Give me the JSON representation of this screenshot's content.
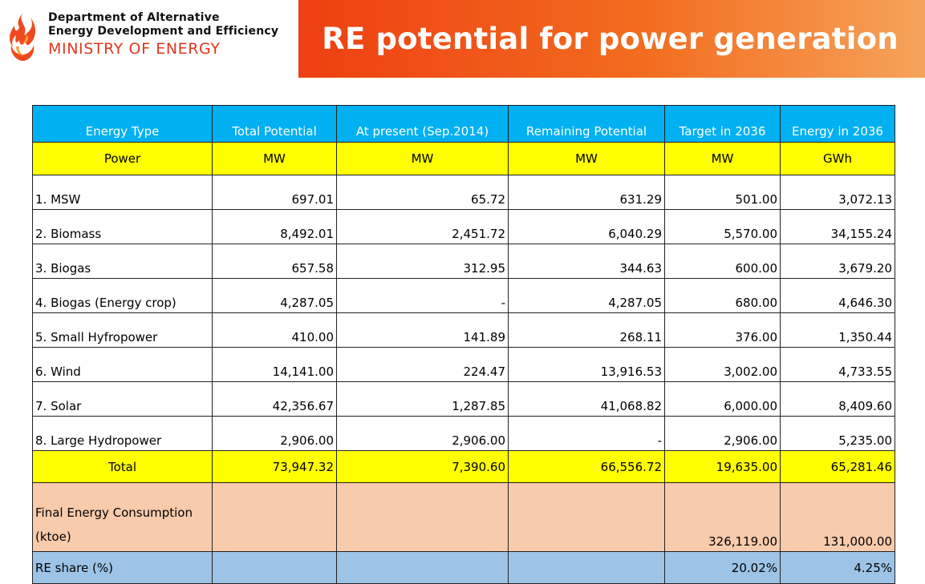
{
  "header": {
    "org_line1": "Department of Alternative",
    "org_line2": "Energy Development and Efficiency",
    "org_line3": "MINISTRY OF ENERGY",
    "title": "RE potential for power generation",
    "logo_icon": "flame-logo-icon",
    "brand_color": "#e2361e",
    "banner_gradient": [
      "#ee3f12",
      "#f26c1f",
      "#f6a35a"
    ]
  },
  "table": {
    "columns": [
      "Energy Type",
      "Total Potential",
      "At present (Sep.2014)",
      "Remaining Potential",
      "Target in 2036",
      "Energy in 2036"
    ],
    "units": [
      "Power",
      "MW",
      "MW",
      "MW",
      "MW",
      "GWh"
    ],
    "rows": [
      {
        "name": "1. MSW",
        "values": [
          "697.01",
          "65.72",
          "631.29",
          "501.00",
          "3,072.13"
        ]
      },
      {
        "name": "2. Biomass",
        "values": [
          "8,492.01",
          "2,451.72",
          "6,040.29",
          "5,570.00",
          "34,155.24"
        ]
      },
      {
        "name": "3. Biogas",
        "values": [
          "657.58",
          "312.95",
          "344.63",
          "600.00",
          "3,679.20"
        ]
      },
      {
        "name": "4. Biogas (Energy crop)",
        "values": [
          "4,287.05",
          "-",
          "4,287.05",
          "680.00",
          "4,646.30"
        ]
      },
      {
        "name": "5. Small Hyfropower",
        "values": [
          "410.00",
          "141.89",
          "268.11",
          "376.00",
          "1,350.44"
        ]
      },
      {
        "name": "6. Wind",
        "values": [
          "14,141.00",
          "224.47",
          "13,916.53",
          "3,002.00",
          "4,733.55"
        ]
      },
      {
        "name": "7. Solar",
        "values": [
          "42,356.67",
          "1,287.85",
          "41,068.82",
          "6,000.00",
          "8,409.60"
        ]
      },
      {
        "name": "8. Large Hydropower",
        "values": [
          "2,906.00",
          "2,906.00",
          "-",
          "2,906.00",
          "5,235.00"
        ]
      }
    ],
    "total": {
      "name": "Total",
      "values": [
        "73,947.32",
        "7,390.60",
        "66,556.72",
        "19,635.00",
        "65,281.46"
      ]
    },
    "final_energy": {
      "name_line1": "Final Energy Consumption",
      "name_line2": "(ktoe)",
      "values": [
        "",
        "",
        "",
        "326,119.00",
        "131,000.00"
      ]
    },
    "re_share": {
      "name": "RE share (%)",
      "values": [
        "",
        "",
        "",
        "20.02%",
        "4.25%"
      ]
    },
    "colors": {
      "header": "#00b0f0",
      "units": "#ffff00",
      "total": "#ffff00",
      "final_energy": "#f8cbad",
      "re_share": "#9dc3e6"
    }
  }
}
